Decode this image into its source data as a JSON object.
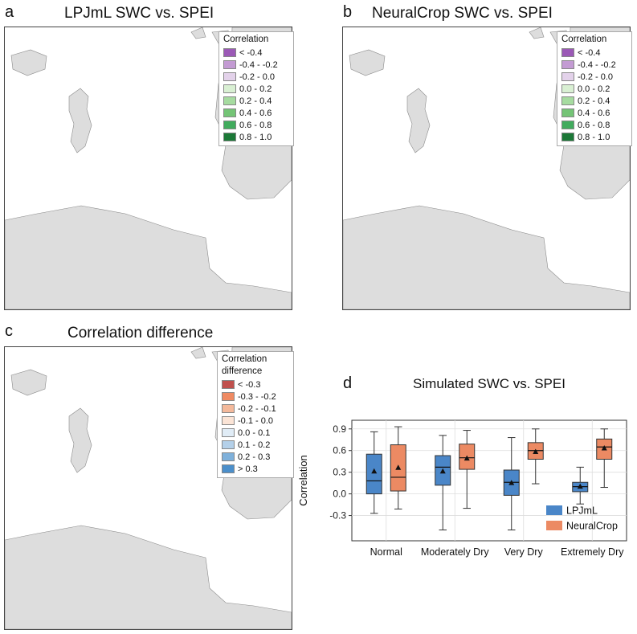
{
  "panels": {
    "a": {
      "letter": "a",
      "title": "LPJmL SWC vs. SPEI",
      "legend_title": "Correlation",
      "legend": [
        {
          "label": "< -0.4",
          "color": "#9b59b6"
        },
        {
          "label": "-0.4 - -0.2",
          "color": "#c39bd3"
        },
        {
          "label": "-0.2 - 0.0",
          "color": "#e3d2ea"
        },
        {
          "label": "0.0 - 0.2",
          "color": "#d9f0d3"
        },
        {
          "label": "0.2 - 0.4",
          "color": "#a6dba0"
        },
        {
          "label": "0.4 - 0.6",
          "color": "#74c476"
        },
        {
          "label": "0.6 - 0.8",
          "color": "#41ab5d"
        },
        {
          "label": "0.8 - 1.0",
          "color": "#1b7837"
        }
      ]
    },
    "b": {
      "letter": "b",
      "title": "NeuralCrop SWC vs. SPEI",
      "legend_title": "Correlation",
      "legend": [
        {
          "label": "< -0.4",
          "color": "#9b59b6"
        },
        {
          "label": "-0.4 - -0.2",
          "color": "#c39bd3"
        },
        {
          "label": "-0.2 - 0.0",
          "color": "#e3d2ea"
        },
        {
          "label": "0.0 - 0.2",
          "color": "#d9f0d3"
        },
        {
          "label": "0.2 - 0.4",
          "color": "#a6dba0"
        },
        {
          "label": "0.4 - 0.6",
          "color": "#74c476"
        },
        {
          "label": "0.6 - 0.8",
          "color": "#41ab5d"
        },
        {
          "label": "0.8 - 1.0",
          "color": "#1b7837"
        }
      ]
    },
    "c": {
      "letter": "c",
      "title": "Correlation difference",
      "legend_title_line1": "Correlation",
      "legend_title_line2": "difference",
      "legend": [
        {
          "label": "< -0.3",
          "color": "#c0504d"
        },
        {
          "label": "-0.3 - -0.2",
          "color": "#ef8a62"
        },
        {
          "label": "-0.2 - -0.1",
          "color": "#f4b99b"
        },
        {
          "label": "-0.1 - 0.0",
          "color": "#fbe4d6"
        },
        {
          "label": "0.0 - 0.1",
          "color": "#e0ecf6"
        },
        {
          "label": "0.1 - 0.2",
          "color": "#b4d0e9"
        },
        {
          "label": "0.2 - 0.3",
          "color": "#7fb1db"
        },
        {
          "label": "> 0.3",
          "color": "#4b8fcb"
        }
      ]
    },
    "d": {
      "letter": "d"
    }
  },
  "colors": {
    "land_outside": "#dddddd",
    "ocean": "#ffffff",
    "lpjml": "#4a86c8",
    "neuralcrop": "#ec8a63"
  },
  "chart_data": {
    "type": "box",
    "title": "Simulated SWC vs. SPEI",
    "xlabel": "",
    "ylabel": "Correlation",
    "ylim": [
      -0.65,
      1.02
    ],
    "yticks": [
      -0.3,
      0.0,
      0.3,
      0.6,
      0.9
    ],
    "ytick_labels": [
      "-0.3",
      "0.0",
      "0.3",
      "0.6",
      "0.9"
    ],
    "categories": [
      "Normal",
      "Moderately Dry",
      "Very Dry",
      "Extremely Dry"
    ],
    "series": [
      {
        "name": "LPJmL",
        "color": "#4a86c8",
        "boxes": [
          {
            "whisker_low": -0.27,
            "q1": 0.0,
            "median": 0.18,
            "q3": 0.55,
            "whisker_high": 0.86,
            "mean": 0.31
          },
          {
            "whisker_low": -0.5,
            "q1": 0.12,
            "median": 0.37,
            "q3": 0.53,
            "whisker_high": 0.81,
            "mean": 0.31
          },
          {
            "whisker_low": -0.5,
            "q1": -0.02,
            "median": 0.16,
            "q3": 0.33,
            "whisker_high": 0.78,
            "mean": 0.15
          },
          {
            "whisker_low": -0.14,
            "q1": 0.03,
            "median": 0.1,
            "q3": 0.16,
            "whisker_high": 0.37,
            "mean": 0.1
          }
        ]
      },
      {
        "name": "NeuralCrop",
        "color": "#ec8a63",
        "boxes": [
          {
            "whisker_low": -0.21,
            "q1": 0.04,
            "median": 0.23,
            "q3": 0.68,
            "whisker_high": 0.93,
            "mean": 0.36
          },
          {
            "whisker_low": -0.2,
            "q1": 0.34,
            "median": 0.5,
            "q3": 0.69,
            "whisker_high": 0.88,
            "mean": 0.49
          },
          {
            "whisker_low": 0.14,
            "q1": 0.48,
            "median": 0.6,
            "q3": 0.71,
            "whisker_high": 0.9,
            "mean": 0.58
          },
          {
            "whisker_low": 0.09,
            "q1": 0.48,
            "median": 0.65,
            "q3": 0.76,
            "whisker_high": 0.9,
            "mean": 0.63
          }
        ]
      }
    ],
    "legend": [
      "LPJmL",
      "NeuralCrop"
    ],
    "legend_position": "bottom-right",
    "grid": true
  }
}
